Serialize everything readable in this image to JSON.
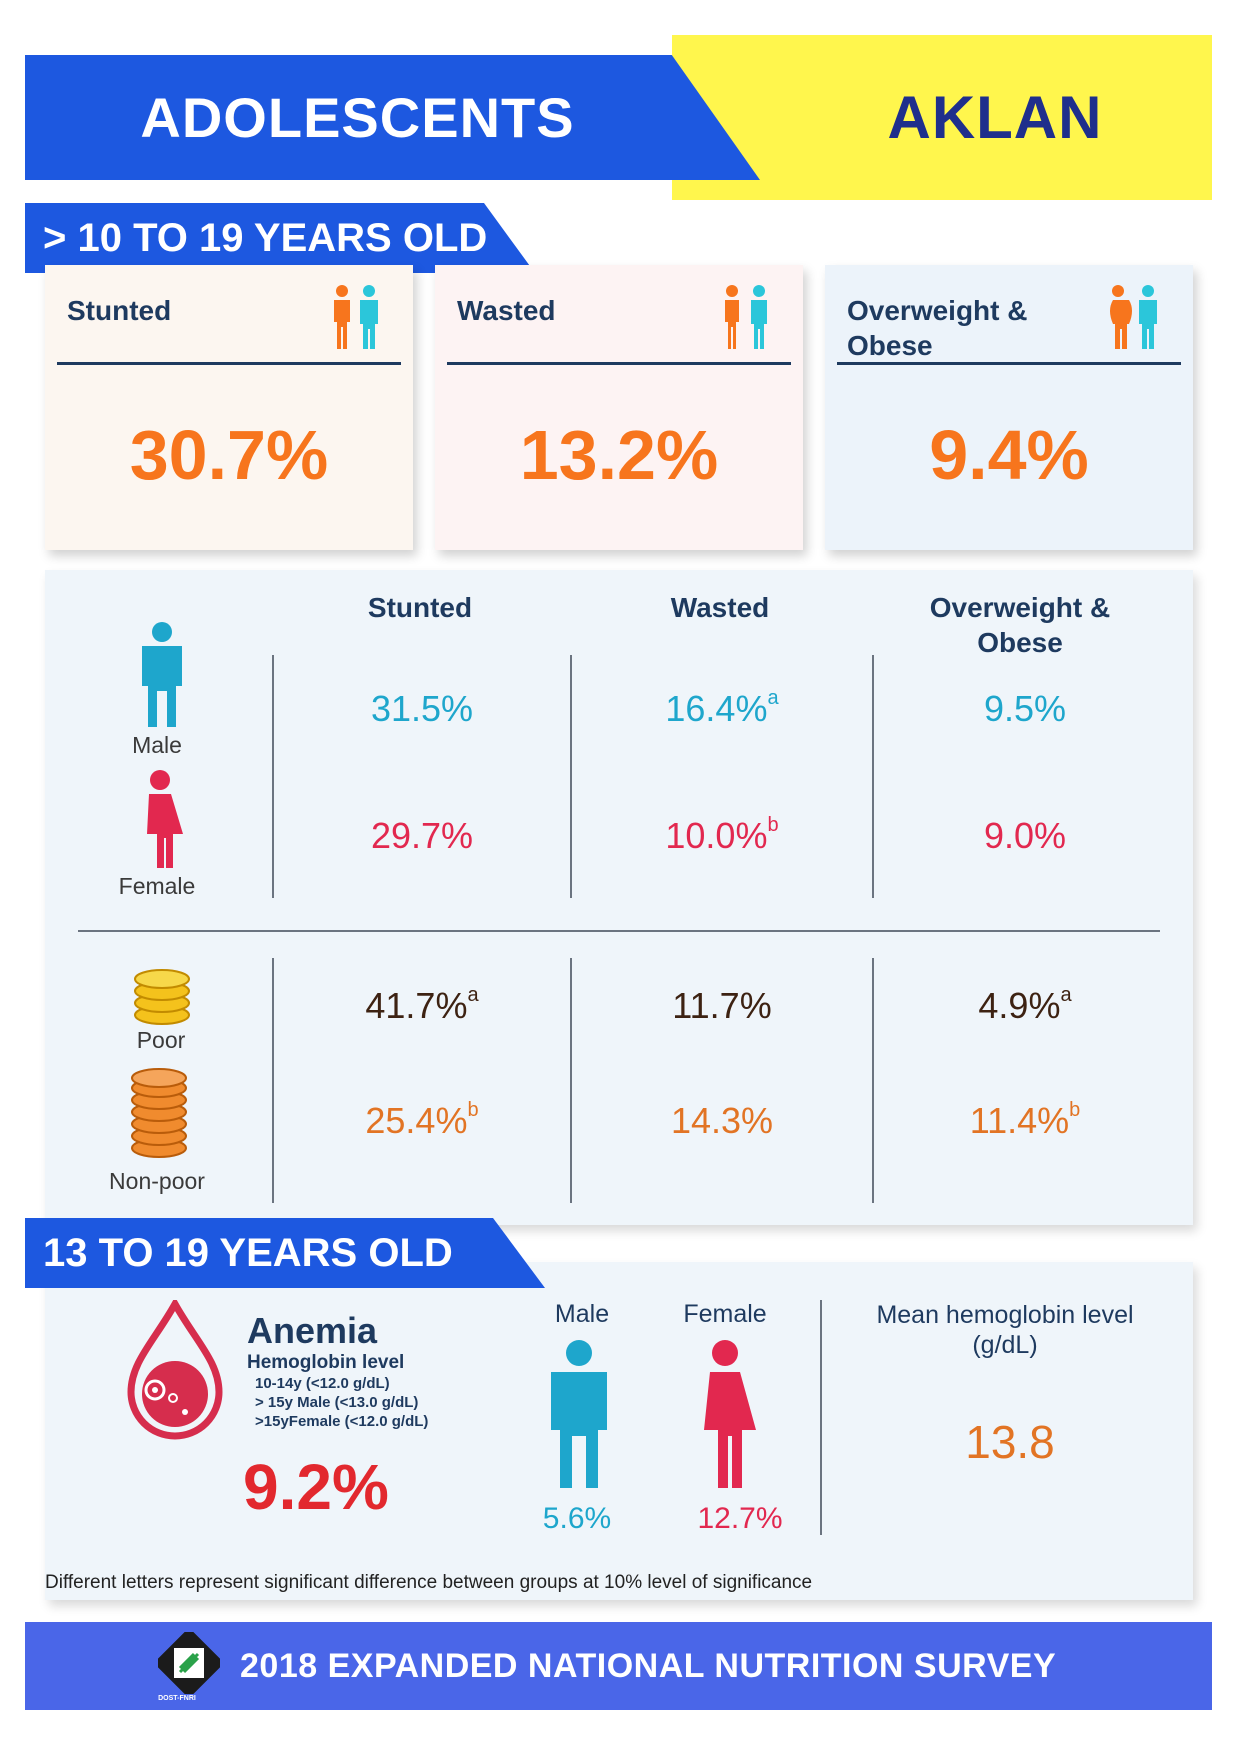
{
  "header": {
    "title": "ADOLESCENTS",
    "region": "AKLAN"
  },
  "section1": {
    "banner": "> 10 TO 19 YEARS OLD",
    "cards": [
      {
        "label": "Stunted",
        "value": "30.7%",
        "icon": "boy-girl-icon"
      },
      {
        "label": "Wasted",
        "value": "13.2%",
        "icon": "boy-girl-thin-icon"
      },
      {
        "label": "Overweight & Obese",
        "value": "9.4%",
        "icon": "boy-girl-obese-icon"
      }
    ],
    "table": {
      "columns": [
        "Stunted",
        "Wasted",
        "Overweight & Obese"
      ],
      "rows": [
        {
          "label": "Male",
          "icon": "male-icon",
          "values": [
            "31.5%",
            "16.4%",
            "9.5%"
          ],
          "sups": [
            "",
            "a",
            ""
          ]
        },
        {
          "label": "Female",
          "icon": "female-icon",
          "values": [
            "29.7%",
            "10.0%",
            "9.0%"
          ],
          "sups": [
            "",
            "b",
            ""
          ]
        },
        {
          "label": "Poor",
          "icon": "small-coin-stack-icon",
          "values": [
            "41.7%",
            "11.7%",
            "4.9%"
          ],
          "sups": [
            "a",
            "",
            "a"
          ]
        },
        {
          "label": "Non-poor",
          "icon": "large-coin-stack-icon",
          "values": [
            "25.4%",
            "14.3%",
            "11.4%"
          ],
          "sups": [
            "b",
            "",
            "b"
          ]
        }
      ]
    }
  },
  "section2": {
    "banner": "13 TO 19 YEARS OLD",
    "anemia": {
      "title": "Anemia",
      "subtitle": "Hemoglobin level",
      "criteria": [
        "10-14y (<12.0 g/dL)",
        "> 15y Male   (<13.0 g/dL)",
        ">15yFemale   (<12.0 g/dL)"
      ],
      "value": "9.2%",
      "icon": "blood-drop-icon"
    },
    "by_sex": {
      "male_label": "Male",
      "male_value": "5.6%",
      "female_label": "Female",
      "female_value": "12.7%"
    },
    "mean": {
      "label": "Mean hemoglobin level (g/dL)",
      "value": "13.8"
    },
    "footnote": "Different letters represent significant difference between groups at 10% level of significance"
  },
  "footer": {
    "text": "2018 EXPANDED NATIONAL NUTRITION SURVEY",
    "logo_text": "DOST-FNRI"
  },
  "colors": {
    "brand_blue": "#1d58e0",
    "yellow": "#fff64d",
    "orange": "#f7751d",
    "male_blue": "#1ea6cc",
    "female_red": "#e2284f",
    "anemia_red": "#e2282e"
  }
}
